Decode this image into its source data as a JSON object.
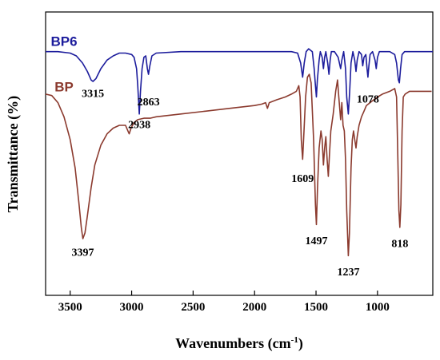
{
  "chart_data": {
    "type": "line",
    "xlabel": "Wavenumbers (cm",
    "xlabel_sup": "-1",
    "xlabel_end": ")",
    "ylabel": "Transmittance (%)",
    "xlim": [
      3700,
      550
    ],
    "x_reversed": true,
    "xticks": [
      3500,
      3000,
      2500,
      2000,
      1500,
      1000
    ],
    "xtick_labels": [
      "3500",
      "3000",
      "2500",
      "2000",
      "1500",
      "1000"
    ],
    "ylim": [
      0,
      100
    ],
    "y_units": "arbitrary (relative transmittance, offset traces)",
    "grid": false,
    "series": [
      {
        "name": "BP6",
        "color": "#1c1c9c",
        "points": [
          [
            3700,
            86
          ],
          [
            3600,
            86
          ],
          [
            3500,
            85.5
          ],
          [
            3450,
            84.5
          ],
          [
            3400,
            82
          ],
          [
            3360,
            79
          ],
          [
            3330,
            76
          ],
          [
            3315,
            75.5
          ],
          [
            3290,
            76.5
          ],
          [
            3250,
            80
          ],
          [
            3200,
            83
          ],
          [
            3150,
            84.5
          ],
          [
            3100,
            85.5
          ],
          [
            3050,
            85.5
          ],
          [
            3000,
            85
          ],
          [
            2980,
            84
          ],
          [
            2960,
            80
          ],
          [
            2950,
            74
          ],
          [
            2938,
            64
          ],
          [
            2928,
            72
          ],
          [
            2915,
            80
          ],
          [
            2900,
            84
          ],
          [
            2885,
            84.5
          ],
          [
            2872,
            80
          ],
          [
            2863,
            78
          ],
          [
            2852,
            81
          ],
          [
            2835,
            84.5
          ],
          [
            2800,
            85.5
          ],
          [
            2600,
            86
          ],
          [
            2400,
            86
          ],
          [
            2200,
            86
          ],
          [
            2000,
            86
          ],
          [
            1800,
            86
          ],
          [
            1700,
            86
          ],
          [
            1650,
            85.5
          ],
          [
            1625,
            82
          ],
          [
            1609,
            77
          ],
          [
            1596,
            82
          ],
          [
            1580,
            86
          ],
          [
            1560,
            87
          ],
          [
            1530,
            86
          ],
          [
            1515,
            80
          ],
          [
            1505,
            74
          ],
          [
            1497,
            70
          ],
          [
            1489,
            76
          ],
          [
            1475,
            83
          ],
          [
            1465,
            86
          ],
          [
            1450,
            84
          ],
          [
            1440,
            80
          ],
          [
            1430,
            84
          ],
          [
            1420,
            86
          ],
          [
            1405,
            82
          ],
          [
            1395,
            78
          ],
          [
            1385,
            83
          ],
          [
            1375,
            86
          ],
          [
            1350,
            86
          ],
          [
            1320,
            84
          ],
          [
            1300,
            80
          ],
          [
            1290,
            83
          ],
          [
            1275,
            86
          ],
          [
            1260,
            80
          ],
          [
            1250,
            70
          ],
          [
            1237,
            64
          ],
          [
            1226,
            72
          ],
          [
            1215,
            82
          ],
          [
            1200,
            86
          ],
          [
            1185,
            83
          ],
          [
            1175,
            79
          ],
          [
            1165,
            83
          ],
          [
            1150,
            86
          ],
          [
            1130,
            85
          ],
          [
            1120,
            81
          ],
          [
            1110,
            84
          ],
          [
            1095,
            85
          ],
          [
            1085,
            80
          ],
          [
            1078,
            77
          ],
          [
            1070,
            81
          ],
          [
            1060,
            85
          ],
          [
            1040,
            86
          ],
          [
            1020,
            83
          ],
          [
            1010,
            80
          ],
          [
            1000,
            84
          ],
          [
            985,
            86
          ],
          [
            950,
            86
          ],
          [
            900,
            86
          ],
          [
            860,
            85
          ],
          [
            845,
            82
          ],
          [
            830,
            76
          ],
          [
            822,
            75
          ],
          [
            812,
            80
          ],
          [
            800,
            85
          ],
          [
            780,
            86
          ],
          [
            700,
            86
          ],
          [
            600,
            86
          ],
          [
            550,
            86
          ]
        ]
      },
      {
        "name": "BP",
        "color": "#8b3a2e",
        "points": [
          [
            3700,
            71
          ],
          [
            3650,
            70.5
          ],
          [
            3600,
            68
          ],
          [
            3550,
            63
          ],
          [
            3500,
            55
          ],
          [
            3460,
            45
          ],
          [
            3430,
            33
          ],
          [
            3410,
            24
          ],
          [
            3397,
            20
          ],
          [
            3380,
            22
          ],
          [
            3360,
            28
          ],
          [
            3330,
            38
          ],
          [
            3300,
            46
          ],
          [
            3250,
            53
          ],
          [
            3200,
            57
          ],
          [
            3150,
            59
          ],
          [
            3100,
            60
          ],
          [
            3050,
            60
          ],
          [
            3030,
            58
          ],
          [
            3020,
            57
          ],
          [
            3005,
            59
          ],
          [
            2980,
            61
          ],
          [
            2950,
            62
          ],
          [
            2900,
            62.5
          ],
          [
            2850,
            62.5
          ],
          [
            2800,
            63
          ],
          [
            2600,
            64
          ],
          [
            2400,
            65
          ],
          [
            2200,
            66
          ],
          [
            2000,
            67
          ],
          [
            1940,
            67.5
          ],
          [
            1910,
            68
          ],
          [
            1895,
            66
          ],
          [
            1880,
            68
          ],
          [
            1820,
            69
          ],
          [
            1750,
            70
          ],
          [
            1700,
            71
          ],
          [
            1660,
            72
          ],
          [
            1640,
            74
          ],
          [
            1630,
            70
          ],
          [
            1620,
            55
          ],
          [
            1609,
            48
          ],
          [
            1598,
            58
          ],
          [
            1585,
            70
          ],
          [
            1570,
            77
          ],
          [
            1555,
            78
          ],
          [
            1540,
            75
          ],
          [
            1520,
            55
          ],
          [
            1505,
            32
          ],
          [
            1497,
            25
          ],
          [
            1488,
            38
          ],
          [
            1475,
            52
          ],
          [
            1460,
            58
          ],
          [
            1450,
            55
          ],
          [
            1440,
            46
          ],
          [
            1430,
            52
          ],
          [
            1420,
            56
          ],
          [
            1410,
            48
          ],
          [
            1400,
            42
          ],
          [
            1390,
            50
          ],
          [
            1380,
            58
          ],
          [
            1360,
            64
          ],
          [
            1340,
            72
          ],
          [
            1325,
            76
          ],
          [
            1315,
            70
          ],
          [
            1300,
            62
          ],
          [
            1290,
            68
          ],
          [
            1280,
            60
          ],
          [
            1270,
            58
          ],
          [
            1260,
            48
          ],
          [
            1250,
            30
          ],
          [
            1237,
            14
          ],
          [
            1228,
            22
          ],
          [
            1215,
            45
          ],
          [
            1205,
            55
          ],
          [
            1195,
            58
          ],
          [
            1185,
            55
          ],
          [
            1175,
            52
          ],
          [
            1165,
            56
          ],
          [
            1150,
            60
          ],
          [
            1130,
            63
          ],
          [
            1110,
            65
          ],
          [
            1090,
            67
          ],
          [
            1060,
            68
          ],
          [
            1030,
            69
          ],
          [
            1000,
            70
          ],
          [
            960,
            71
          ],
          [
            900,
            72
          ],
          [
            860,
            73
          ],
          [
            845,
            70
          ],
          [
            835,
            50
          ],
          [
            826,
            30
          ],
          [
            818,
            24
          ],
          [
            810,
            32
          ],
          [
            800,
            58
          ],
          [
            790,
            70
          ],
          [
            775,
            71
          ],
          [
            740,
            72
          ],
          [
            700,
            72
          ],
          [
            650,
            72
          ],
          [
            600,
            72
          ],
          [
            560,
            72
          ]
        ]
      }
    ],
    "series_labels": [
      {
        "text": "BP6",
        "color": "#1c1c9c"
      },
      {
        "text": "BP",
        "color": "#8b3a2e"
      }
    ],
    "annotations": [
      {
        "text": "3315",
        "x": 3315,
        "y": 70
      },
      {
        "text": "2938",
        "x": 2938,
        "y": 59
      },
      {
        "text": "2863",
        "x": 2863,
        "y": 67
      },
      {
        "text": "1078",
        "x": 1078,
        "y": 68
      },
      {
        "text": "1609",
        "x": 1609,
        "y": 40
      },
      {
        "text": "3397",
        "x": 3397,
        "y": 14
      },
      {
        "text": "1497",
        "x": 1497,
        "y": 18
      },
      {
        "text": "1237",
        "x": 1237,
        "y": 7
      },
      {
        "text": "818",
        "x": 818,
        "y": 17
      }
    ]
  }
}
